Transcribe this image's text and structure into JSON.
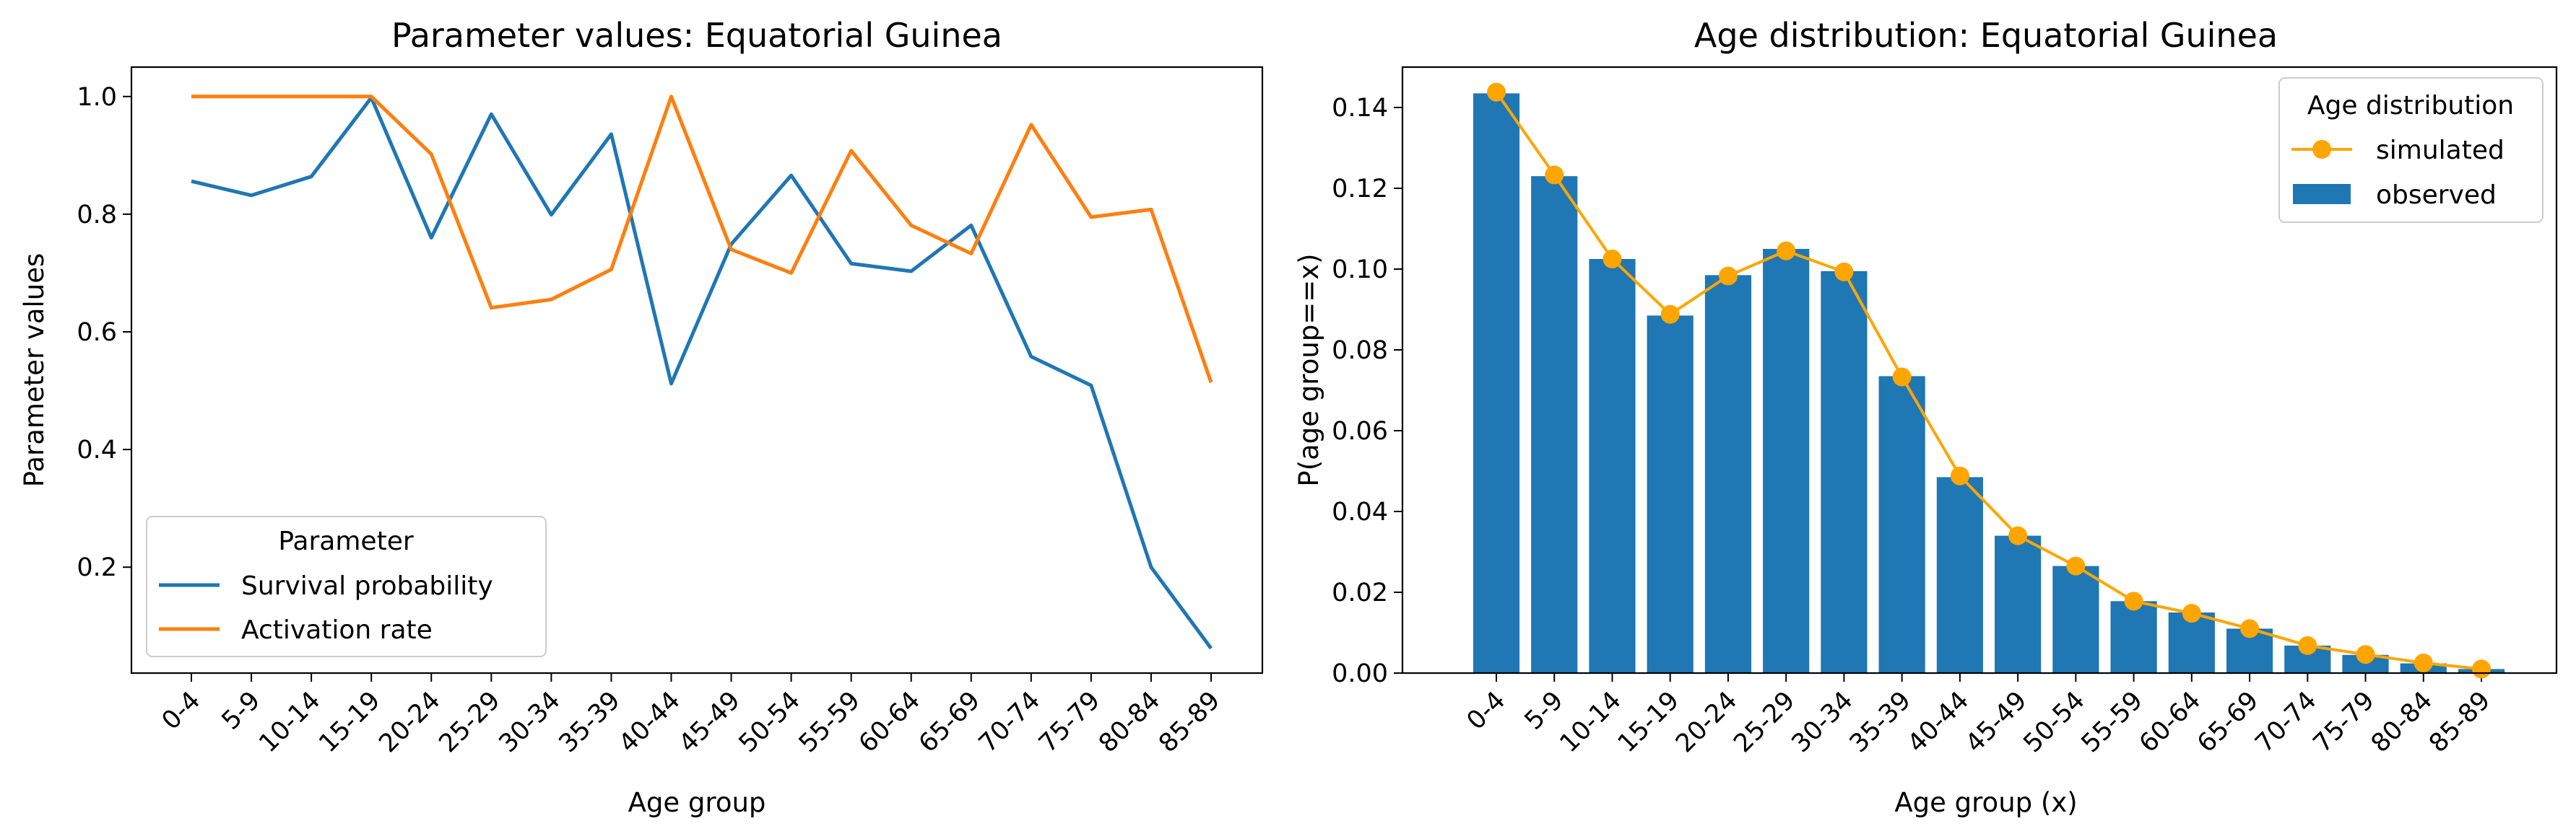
{
  "colors": {
    "survival": "#1f77b4",
    "activation": "#ff7f0e",
    "observed": "#1f77b4",
    "simulated": "#ffa500"
  },
  "chart_data": [
    {
      "type": "line",
      "title": "Parameter values: Equatorial Guinea",
      "xlabel": "Age group",
      "ylabel": "Parameter values",
      "categories": [
        "0-4",
        "5-9",
        "10-14",
        "15-19",
        "20-24",
        "25-29",
        "30-34",
        "35-39",
        "40-44",
        "45-49",
        "50-54",
        "55-59",
        "60-64",
        "65-69",
        "70-74",
        "75-79",
        "80-84",
        "85-89"
      ],
      "ylim": [
        0.02,
        1.05
      ],
      "yticks": [
        "0.2",
        "0.4",
        "0.6",
        "0.8",
        "1.0"
      ],
      "grid": false,
      "legend": {
        "title": "Parameter",
        "placement": "lower-left"
      },
      "series": [
        {
          "name": "Survival probability",
          "values": [
            0.856,
            0.832,
            0.864,
            0.998,
            0.76,
            0.97,
            0.799,
            0.936,
            0.512,
            0.749,
            0.866,
            0.716,
            0.703,
            0.781,
            0.558,
            0.509,
            0.2,
            0.062
          ]
        },
        {
          "name": "Activation rate",
          "values": [
            1.0,
            1.0,
            1.0,
            1.0,
            0.902,
            0.641,
            0.655,
            0.706,
            1.0,
            0.74,
            0.7,
            0.908,
            0.781,
            0.733,
            0.952,
            0.795,
            0.808,
            0.514
          ]
        }
      ]
    },
    {
      "type": "bar",
      "title": "Age distribution: Equatorial Guinea",
      "xlabel": "Age group (x)",
      "ylabel": "P(age group==x)",
      "categories": [
        "0-4",
        "5-9",
        "10-14",
        "15-19",
        "20-24",
        "25-29",
        "30-34",
        "35-39",
        "40-44",
        "45-49",
        "50-54",
        "55-59",
        "60-64",
        "65-69",
        "70-74",
        "75-79",
        "80-84",
        "85-89"
      ],
      "ylim": [
        0.0,
        0.15
      ],
      "yticks": [
        "0.00",
        "0.02",
        "0.04",
        "0.06",
        "0.08",
        "0.10",
        "0.12",
        "0.14"
      ],
      "grid": false,
      "legend": {
        "title": "Age distribution",
        "placement": "upper-right"
      },
      "series": [
        {
          "name": "observed",
          "kind": "bar",
          "values": [
            0.1435,
            0.123,
            0.1025,
            0.0885,
            0.0985,
            0.105,
            0.0995,
            0.0735,
            0.0485,
            0.034,
            0.0265,
            0.0178,
            0.015,
            0.011,
            0.0068,
            0.0045,
            0.0024,
            0.001
          ]
        },
        {
          "name": "simulated",
          "kind": "line-marker",
          "values": [
            0.1438,
            0.1233,
            0.1025,
            0.0888,
            0.0983,
            0.1045,
            0.0993,
            0.0733,
            0.0488,
            0.034,
            0.0265,
            0.0178,
            0.0148,
            0.011,
            0.0068,
            0.0046,
            0.0025,
            0.001
          ]
        }
      ]
    }
  ]
}
